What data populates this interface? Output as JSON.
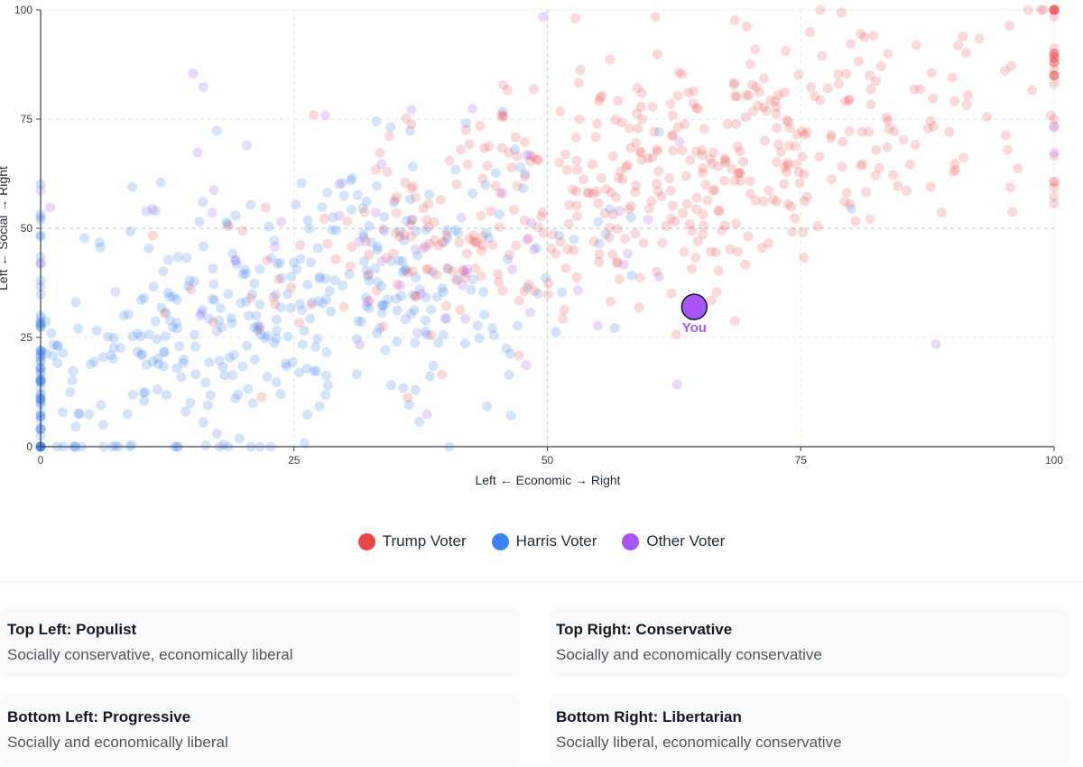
{
  "chart_data": {
    "type": "scatter",
    "xlabel": "Left ← Economic → Right",
    "ylabel": "Left ← Social → Right",
    "xlim": [
      0,
      100
    ],
    "ylim": [
      0,
      100
    ],
    "xticks": [
      "0",
      "25",
      "50",
      "75",
      "100"
    ],
    "yticks": [
      "0",
      "25",
      "50",
      "75",
      "100"
    ],
    "grid": true,
    "series": [
      {
        "name": "Trump Voter",
        "color": "#ef4444",
        "count_estimate": 520
      },
      {
        "name": "Harris Voter",
        "color": "#3b82f6",
        "count_estimate": 440
      },
      {
        "name": "Other Voter",
        "color": "#a855f7",
        "count_estimate": 60
      }
    ],
    "highlight": {
      "label": "You",
      "x": 64.5,
      "y": 32,
      "color": "#a855f7"
    }
  },
  "legend": {
    "items": [
      {
        "label": "Trump Voter",
        "color": "#ef4444"
      },
      {
        "label": "Harris Voter",
        "color": "#3b82f6"
      },
      {
        "label": "Other Voter",
        "color": "#a855f7"
      }
    ]
  },
  "quadrants": [
    {
      "title": "Top Left: Populist",
      "desc": "Socially conservative, economically liberal"
    },
    {
      "title": "Top Right: Conservative",
      "desc": "Socially and economically conservative"
    },
    {
      "title": "Bottom Left: Progressive",
      "desc": "Socially and economically liberal"
    },
    {
      "title": "Bottom Right: Libertarian",
      "desc": "Socially liberal, economically conservative"
    }
  ]
}
